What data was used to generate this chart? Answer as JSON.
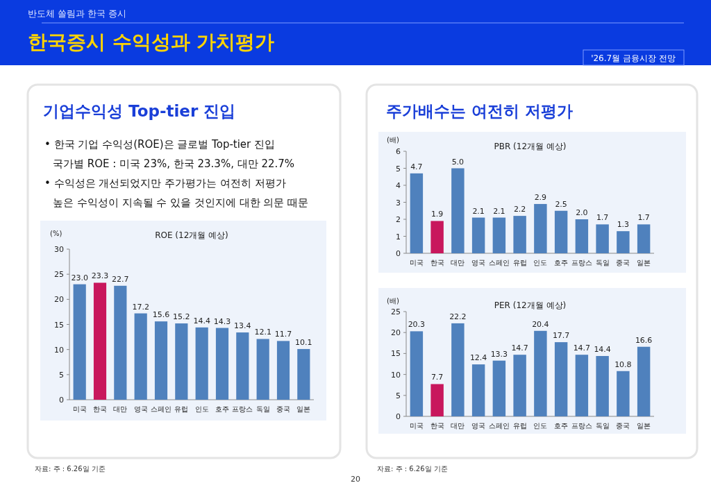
{
  "chart_data": [
    {
      "type": "other",
      "title": "한국증시 수익성과 가치평가",
      "subtitle": "반도체 쏠림과 한국 증시",
      "annotations": [
        "'26.7월 금융시장 전망",
        "20"
      ]
    },
    {
      "type": "other",
      "title": "기업수익성 Top-tier 진입",
      "annotations": [
        "• 한국 기업 수익성(ROE)은 글로벌 Top-tier 진입",
        "국가별 ROE : 미국 23%, 한국 23.3%, 대만 22.7%",
        "• 수익성은 개선되었지만 주가평가는 여전히 저평가",
        "높은 수익성이 지속될 수 있을 것인지에 대한 의문 때문",
        "자료: 주 : 6.26일 기준"
      ]
    },
    {
      "type": "bar",
      "title": "ROE (12개월 예상)",
      "ylabel": "(%)",
      "categories": [
        "미국",
        "한국",
        "대만",
        "영국",
        "스페인",
        "유럽",
        "인도",
        "호주",
        "프랑스",
        "독일",
        "중국",
        "일본"
      ],
      "values": [
        23.0,
        23.3,
        22.7,
        17.2,
        15.6,
        15.2,
        14.4,
        14.3,
        13.4,
        12.1,
        11.7,
        10.1
      ],
      "value_labels": [
        "23.0",
        "23.3",
        "22.7",
        "17.2",
        "15.6",
        "15.2",
        "14.4",
        "14.3",
        "13.4",
        "12.1",
        "11.7",
        "10.1"
      ],
      "colors": [
        "#4f81bd",
        "#c8175d",
        "#4f81bd",
        "#4f81bd",
        "#4f81bd",
        "#4f81bd",
        "#4f81bd",
        "#4f81bd",
        "#4f81bd",
        "#4f81bd",
        "#4f81bd",
        "#4f81bd"
      ],
      "ylim": [
        0,
        30
      ],
      "yticks": [
        0,
        5,
        10,
        15,
        20,
        25,
        30
      ]
    },
    {
      "type": "other",
      "title": "주가배수는 여전히 저평가",
      "annotations": [
        "자료: 주 : 6.26일 기준"
      ]
    },
    {
      "type": "bar",
      "title": "PBR (12개월 예상)",
      "ylabel": "(배)",
      "categories": [
        "미국",
        "한국",
        "대만",
        "영국",
        "스페인",
        "유럽",
        "인도",
        "호주",
        "프랑스",
        "독일",
        "중국",
        "일본"
      ],
      "values": [
        4.7,
        1.9,
        5.0,
        2.1,
        2.1,
        2.2,
        2.9,
        2.5,
        2.0,
        1.7,
        1.3,
        1.7
      ],
      "value_labels": [
        "4.7",
        "1.9",
        "5.0",
        "2.1",
        "2.1",
        "2.2",
        "2.9",
        "2.5",
        "2.0",
        "1.7",
        "1.3",
        "1.7"
      ],
      "colors": [
        "#4f81bd",
        "#c8175d",
        "#4f81bd",
        "#4f81bd",
        "#4f81bd",
        "#4f81bd",
        "#4f81bd",
        "#4f81bd",
        "#4f81bd",
        "#4f81bd",
        "#4f81bd",
        "#4f81bd"
      ],
      "ylim": [
        0,
        6
      ],
      "yticks": [
        0,
        1,
        2,
        3,
        4,
        5,
        6
      ]
    },
    {
      "type": "bar",
      "title": "PER (12개월 예상)",
      "ylabel": "(배)",
      "categories": [
        "미국",
        "한국",
        "대만",
        "영국",
        "스페인",
        "유럽",
        "인도",
        "호주",
        "프랑스",
        "독일",
        "중국",
        "일본"
      ],
      "values": [
        20.3,
        7.7,
        22.2,
        12.4,
        13.3,
        14.7,
        20.4,
        17.7,
        14.7,
        14.4,
        10.8,
        16.6
      ],
      "value_labels": [
        "20.3",
        "7.7",
        "22.2",
        "12.4",
        "13.3",
        "14.7",
        "20.4",
        "17.7",
        "14.7",
        "14.4",
        "10.8",
        "16.6"
      ],
      "colors": [
        "#4f81bd",
        "#c8175d",
        "#4f81bd",
        "#4f81bd",
        "#4f81bd",
        "#4f81bd",
        "#4f81bd",
        "#4f81bd",
        "#4f81bd",
        "#4f81bd",
        "#4f81bd",
        "#4f81bd"
      ],
      "ylim": [
        0,
        25
      ],
      "yticks": [
        0,
        5,
        10,
        15,
        20,
        25
      ]
    }
  ]
}
